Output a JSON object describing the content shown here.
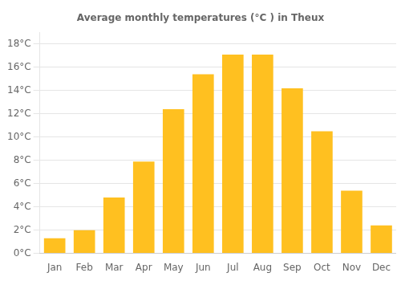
{
  "chart_data": {
    "type": "bar",
    "title": "Average monthly temperatures (°C ) in Theux",
    "categories": [
      "Jan",
      "Feb",
      "Mar",
      "Apr",
      "May",
      "Jun",
      "Jul",
      "Aug",
      "Sep",
      "Oct",
      "Nov",
      "Dec"
    ],
    "values": [
      1.3,
      2.0,
      4.8,
      7.9,
      12.4,
      15.4,
      17.1,
      17.1,
      14.2,
      10.5,
      5.4,
      2.4
    ],
    "color": "#FFC020",
    "ylim": [
      0,
      19
    ],
    "yticks": [
      {
        "value": 0,
        "label": "0°C"
      },
      {
        "value": 2,
        "label": "2°C"
      },
      {
        "value": 4,
        "label": "4°C"
      },
      {
        "value": 6,
        "label": "6°C"
      },
      {
        "value": 8,
        "label": "8°C"
      },
      {
        "value": 10,
        "label": "10°C"
      },
      {
        "value": 12,
        "label": "12°C"
      },
      {
        "value": 14,
        "label": "14°C"
      },
      {
        "value": 16,
        "label": "16°C"
      },
      {
        "value": 18,
        "label": "18°C"
      }
    ],
    "grid": true
  }
}
